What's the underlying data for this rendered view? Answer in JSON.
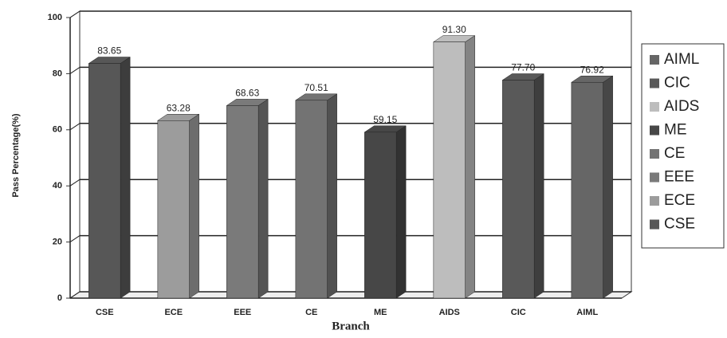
{
  "chart_data": {
    "type": "bar",
    "x_label": "Branch",
    "y_label": "Pass Percentage(%)",
    "categories": [
      "CSE",
      "ECE",
      "EEE",
      "CE",
      "ME",
      "AIDS",
      "CIC",
      "AIML"
    ],
    "values": [
      83.65,
      63.28,
      68.63,
      70.51,
      59.15,
      91.3,
      77.7,
      76.92
    ],
    "value_labels": [
      "83.65",
      "63.28",
      "68.63",
      "70.51",
      "59.15",
      "91.30",
      "77.70",
      "76.92"
    ],
    "colors": [
      "#575757",
      "#9c9c9c",
      "#7a7a7a",
      "#737373",
      "#474747",
      "#bdbdbd",
      "#595959",
      "#666666"
    ],
    "ylim": [
      0,
      100
    ],
    "yticks": [
      0,
      20,
      40,
      60,
      80,
      100
    ],
    "grid": true,
    "legend": "right"
  }
}
